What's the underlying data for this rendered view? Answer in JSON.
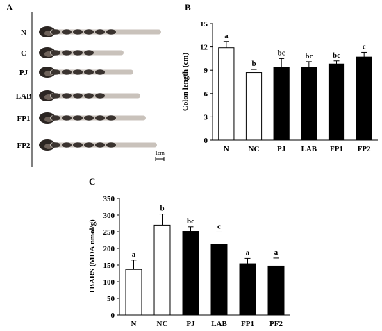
{
  "figure": {
    "panel_a": {
      "letter": "A",
      "row_labels": [
        "N",
        "C",
        "PJ",
        "LAB",
        "FP1",
        "FP2"
      ],
      "scale_bar_label": "1cm"
    },
    "panel_b": {
      "letter": "B"
    },
    "panel_c": {
      "letter": "C"
    }
  },
  "chart_data": [
    {
      "panel": "B",
      "type": "bar",
      "ylabel": "Colon length (cm)",
      "xlabel": "",
      "ylim": [
        0,
        15
      ],
      "yticks": [
        0,
        3,
        6,
        9,
        12,
        15
      ],
      "categories": [
        "N",
        "NC",
        "PJ",
        "LAB",
        "FP1",
        "FP2"
      ],
      "values": [
        11.9,
        8.7,
        9.4,
        9.4,
        9.8,
        10.7
      ],
      "errors": [
        0.8,
        0.4,
        1.1,
        0.7,
        0.4,
        0.6
      ],
      "significance": [
        "a",
        "b",
        "bc",
        "bc",
        "bc",
        "c"
      ],
      "bar_fills": [
        "#ffffff",
        "#ffffff",
        "#000000",
        "#000000",
        "#000000",
        "#000000"
      ]
    },
    {
      "panel": "C",
      "type": "bar",
      "ylabel": "TBARS (MDA nmol/g)",
      "xlabel": "",
      "ylim": [
        0,
        350
      ],
      "yticks": [
        0,
        50,
        100,
        150,
        200,
        250,
        300,
        350
      ],
      "categories": [
        "N",
        "NC",
        "PJ",
        "LAB",
        "FP1",
        "PF2"
      ],
      "values": [
        137,
        270,
        251,
        213,
        154,
        147
      ],
      "errors": [
        28,
        33,
        14,
        36,
        16,
        24
      ],
      "significance": [
        "a",
        "b",
        "bc",
        "c",
        "a",
        "a"
      ],
      "bar_fills": [
        "#ffffff",
        "#ffffff",
        "#000000",
        "#000000",
        "#000000",
        "#000000"
      ]
    }
  ]
}
